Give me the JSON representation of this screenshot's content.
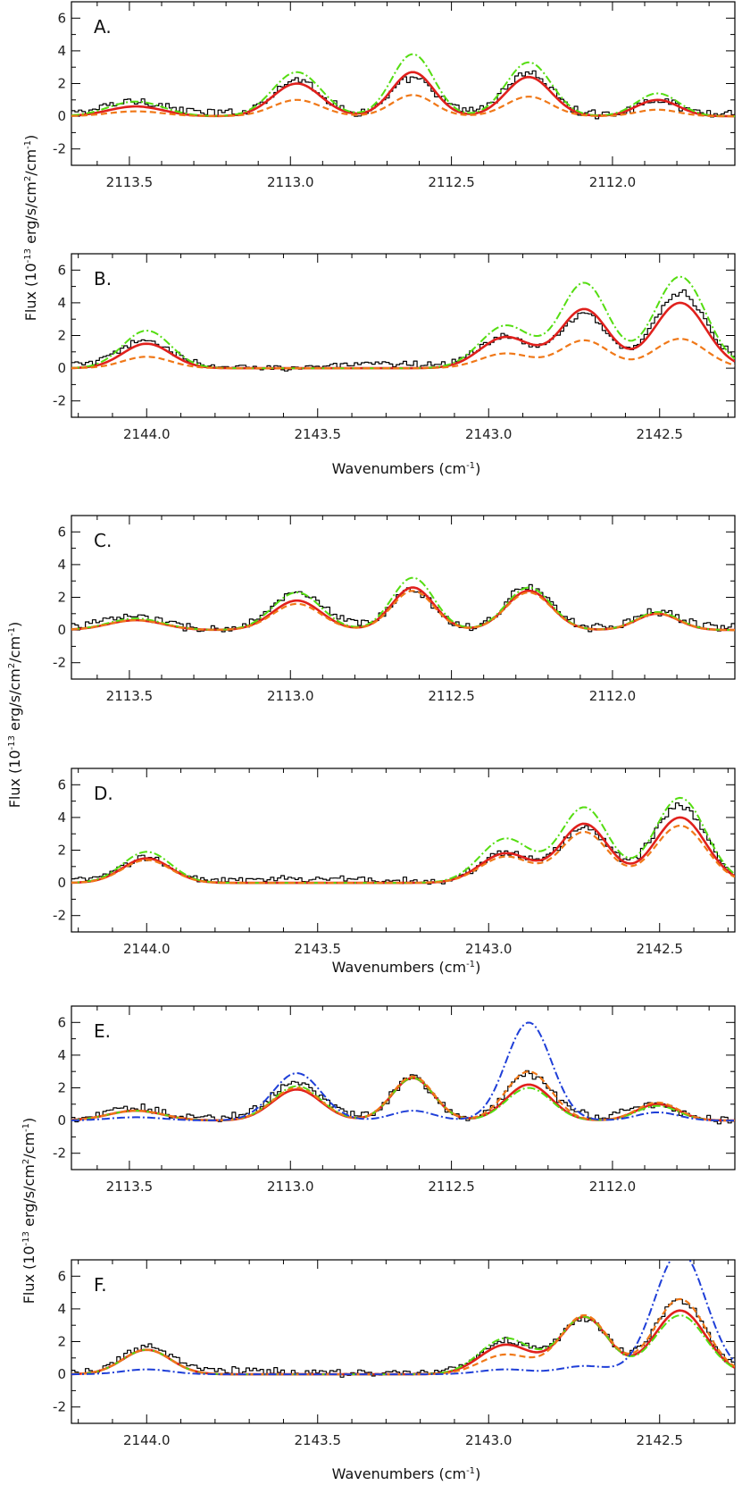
{
  "figure": {
    "ylabel_prefix": "Flux (10",
    "ylabel_exp1": "-13",
    "ylabel_mid": " erg/s/cm",
    "ylabel_exp2": "2",
    "ylabel_mid2": "/cm",
    "ylabel_exp3": "-1",
    "ylabel_suffix": ")",
    "xlabel_prefix": "Wavenumbers (cm",
    "xlabel_exp": "-1",
    "xlabel_suffix": ")"
  },
  "colors": {
    "data": "#000000",
    "red": "#e0201c",
    "green": "#55dd11",
    "orange": "#f07818",
    "blue": "#1f3fd8"
  },
  "chart_data": [
    {
      "type": "line",
      "label": "A.",
      "title": "",
      "xlim": [
        2113.68,
        2111.62
      ],
      "ylim": [
        -3,
        7
      ],
      "xticks": [
        "2113.5",
        "2113.0",
        "2112.5",
        "2112.0"
      ],
      "yticks": [
        "-2",
        "0",
        "2",
        "4",
        "6"
      ],
      "xlabel": "",
      "ylabel": "",
      "peaks_x": [
        2113.48,
        2112.98,
        2112.62,
        2112.26,
        2111.86
      ],
      "noise": 0.22,
      "series": [
        {
          "name": "observed",
          "style": "step",
          "color": "data",
          "amps": [
            0.7,
            2.2,
            2.1,
            2.5,
            0.9
          ],
          "widths": [
            0.085,
            0.075,
            0.065,
            0.07,
            0.065
          ]
        },
        {
          "name": "model-red",
          "style": "solid",
          "color": "red",
          "amps": [
            0.6,
            2.0,
            2.7,
            2.4,
            1.0
          ]
        },
        {
          "name": "model-green",
          "style": "dashdot",
          "color": "green",
          "amps": [
            0.9,
            2.7,
            3.8,
            3.3,
            1.4
          ]
        },
        {
          "name": "model-orange",
          "style": "dashed",
          "color": "orange",
          "amps": [
            0.3,
            1.0,
            1.3,
            1.2,
            0.4
          ]
        }
      ]
    },
    {
      "type": "line",
      "label": "B.",
      "title": "",
      "xlim": [
        2144.22,
        2142.28
      ],
      "ylim": [
        -3,
        7
      ],
      "xticks": [
        "2144.0",
        "2143.5",
        "2143.0",
        "2142.5"
      ],
      "yticks": [
        "-2",
        "0",
        "2",
        "4",
        "6"
      ],
      "xlabel": "Wavenumbers",
      "ylabel": "Flux",
      "peaks_x": [
        2144.0,
        2142.95,
        2142.72,
        2142.44
      ],
      "noise": 0.18,
      "series": [
        {
          "name": "observed",
          "style": "step",
          "color": "data",
          "amps": [
            1.5,
            1.8,
            3.2,
            4.4
          ],
          "widths": [
            0.07,
            0.075,
            0.07,
            0.075
          ]
        },
        {
          "name": "model-red",
          "style": "solid",
          "color": "red",
          "amps": [
            1.5,
            1.9,
            3.6,
            4.0
          ]
        },
        {
          "name": "model-green",
          "style": "dashdot",
          "color": "green",
          "amps": [
            2.3,
            2.6,
            5.2,
            5.6
          ]
        },
        {
          "name": "model-orange",
          "style": "dashed",
          "color": "orange",
          "amps": [
            0.7,
            0.9,
            1.7,
            1.8
          ]
        }
      ]
    },
    {
      "type": "line",
      "label": "C.",
      "title": "",
      "xlim": [
        2113.68,
        2111.62
      ],
      "ylim": [
        -3,
        7
      ],
      "xticks": [
        "2113.5",
        "2113.0",
        "2112.5",
        "2112.0"
      ],
      "yticks": [
        "-2",
        "0",
        "2",
        "4",
        "6"
      ],
      "xlabel": "",
      "ylabel": "",
      "peaks_x": [
        2113.48,
        2112.98,
        2112.62,
        2112.26,
        2111.86
      ],
      "noise": 0.22,
      "series": [
        {
          "name": "observed",
          "style": "step",
          "color": "data",
          "amps": [
            0.7,
            2.1,
            2.2,
            2.6,
            0.9
          ],
          "widths": [
            0.085,
            0.075,
            0.065,
            0.07,
            0.065
          ]
        },
        {
          "name": "model-red",
          "style": "solid",
          "color": "red",
          "amps": [
            0.6,
            1.8,
            2.6,
            2.4,
            1.0
          ]
        },
        {
          "name": "model-green",
          "style": "dashdot",
          "color": "green",
          "amps": [
            0.7,
            2.3,
            3.2,
            2.6,
            1.1
          ]
        },
        {
          "name": "model-orange",
          "style": "dashed",
          "color": "orange",
          "amps": [
            0.6,
            1.6,
            2.4,
            2.3,
            1.0
          ]
        }
      ]
    },
    {
      "type": "line",
      "label": "D.",
      "title": "",
      "xlim": [
        2144.22,
        2142.28
      ],
      "ylim": [
        -3,
        7
      ],
      "xticks": [
        "2144.0",
        "2143.5",
        "2143.0",
        "2142.5"
      ],
      "yticks": [
        "-2",
        "0",
        "2",
        "4",
        "6"
      ],
      "xlabel": "Wavenumbers",
      "ylabel": "Flux",
      "peaks_x": [
        2144.0,
        2142.95,
        2142.72,
        2142.44
      ],
      "noise": 0.18,
      "series": [
        {
          "name": "observed",
          "style": "step",
          "color": "data",
          "amps": [
            1.5,
            1.8,
            3.2,
            4.5
          ],
          "widths": [
            0.07,
            0.075,
            0.07,
            0.075
          ]
        },
        {
          "name": "model-red",
          "style": "solid",
          "color": "red",
          "amps": [
            1.5,
            1.8,
            3.6,
            4.0
          ]
        },
        {
          "name": "model-green",
          "style": "dashdot",
          "color": "green",
          "amps": [
            1.9,
            2.7,
            4.6,
            5.2
          ]
        },
        {
          "name": "model-orange",
          "style": "dashed",
          "color": "orange",
          "amps": [
            1.4,
            1.6,
            3.1,
            3.5
          ]
        }
      ]
    },
    {
      "type": "line",
      "label": "E.",
      "title": "",
      "xlim": [
        2113.68,
        2111.62
      ],
      "ylim": [
        -3,
        7
      ],
      "xticks": [
        "2113.5",
        "2113.0",
        "2112.5",
        "2112.0"
      ],
      "yticks": [
        "-2",
        "0",
        "2",
        "4",
        "6"
      ],
      "xlabel": "",
      "ylabel": "",
      "peaks_x": [
        2113.48,
        2112.98,
        2112.62,
        2112.26,
        2111.86
      ],
      "noise": 0.22,
      "series": [
        {
          "name": "observed",
          "style": "step",
          "color": "data",
          "amps": [
            0.7,
            2.1,
            2.5,
            2.6,
            0.9
          ],
          "widths": [
            0.085,
            0.075,
            0.065,
            0.07,
            0.065
          ]
        },
        {
          "name": "model-red",
          "style": "solid",
          "color": "red",
          "amps": [
            0.6,
            1.9,
            2.6,
            2.2,
            1.0
          ]
        },
        {
          "name": "model-green",
          "style": "dashdot",
          "color": "green",
          "amps": [
            0.6,
            2.1,
            2.6,
            2.0,
            0.9
          ]
        },
        {
          "name": "model-orange",
          "style": "dashed",
          "color": "orange",
          "amps": [
            0.6,
            2.0,
            2.7,
            3.0,
            1.1
          ]
        },
        {
          "name": "model-blue",
          "style": "dashdot",
          "color": "blue",
          "amps": [
            0.2,
            2.9,
            0.6,
            6.0,
            0.5
          ]
        }
      ]
    },
    {
      "type": "line",
      "label": "F.",
      "title": "",
      "xlim": [
        2144.22,
        2142.28
      ],
      "ylim": [
        -3,
        7
      ],
      "xticks": [
        "2144.0",
        "2143.5",
        "2143.0",
        "2142.5"
      ],
      "yticks": [
        "-2",
        "0",
        "2",
        "4",
        "6"
      ],
      "xlabel": "Wavenumbers",
      "ylabel": "Flux",
      "peaks_x": [
        2144.0,
        2142.95,
        2142.72,
        2142.44
      ],
      "noise": 0.18,
      "series": [
        {
          "name": "observed",
          "style": "step",
          "color": "data",
          "amps": [
            1.5,
            1.8,
            3.2,
            4.5
          ],
          "widths": [
            0.07,
            0.075,
            0.07,
            0.075
          ]
        },
        {
          "name": "model-red",
          "style": "solid",
          "color": "red",
          "amps": [
            1.5,
            1.8,
            3.5,
            3.9
          ]
        },
        {
          "name": "model-green",
          "style": "dashdot",
          "color": "green",
          "amps": [
            1.5,
            2.2,
            3.5,
            3.6
          ]
        },
        {
          "name": "model-orange",
          "style": "dashed",
          "color": "orange",
          "amps": [
            1.5,
            1.2,
            3.6,
            4.6
          ]
        },
        {
          "name": "model-blue",
          "style": "dashdot",
          "color": "blue",
          "amps": [
            0.3,
            0.3,
            0.5,
            7.5
          ]
        }
      ]
    }
  ]
}
